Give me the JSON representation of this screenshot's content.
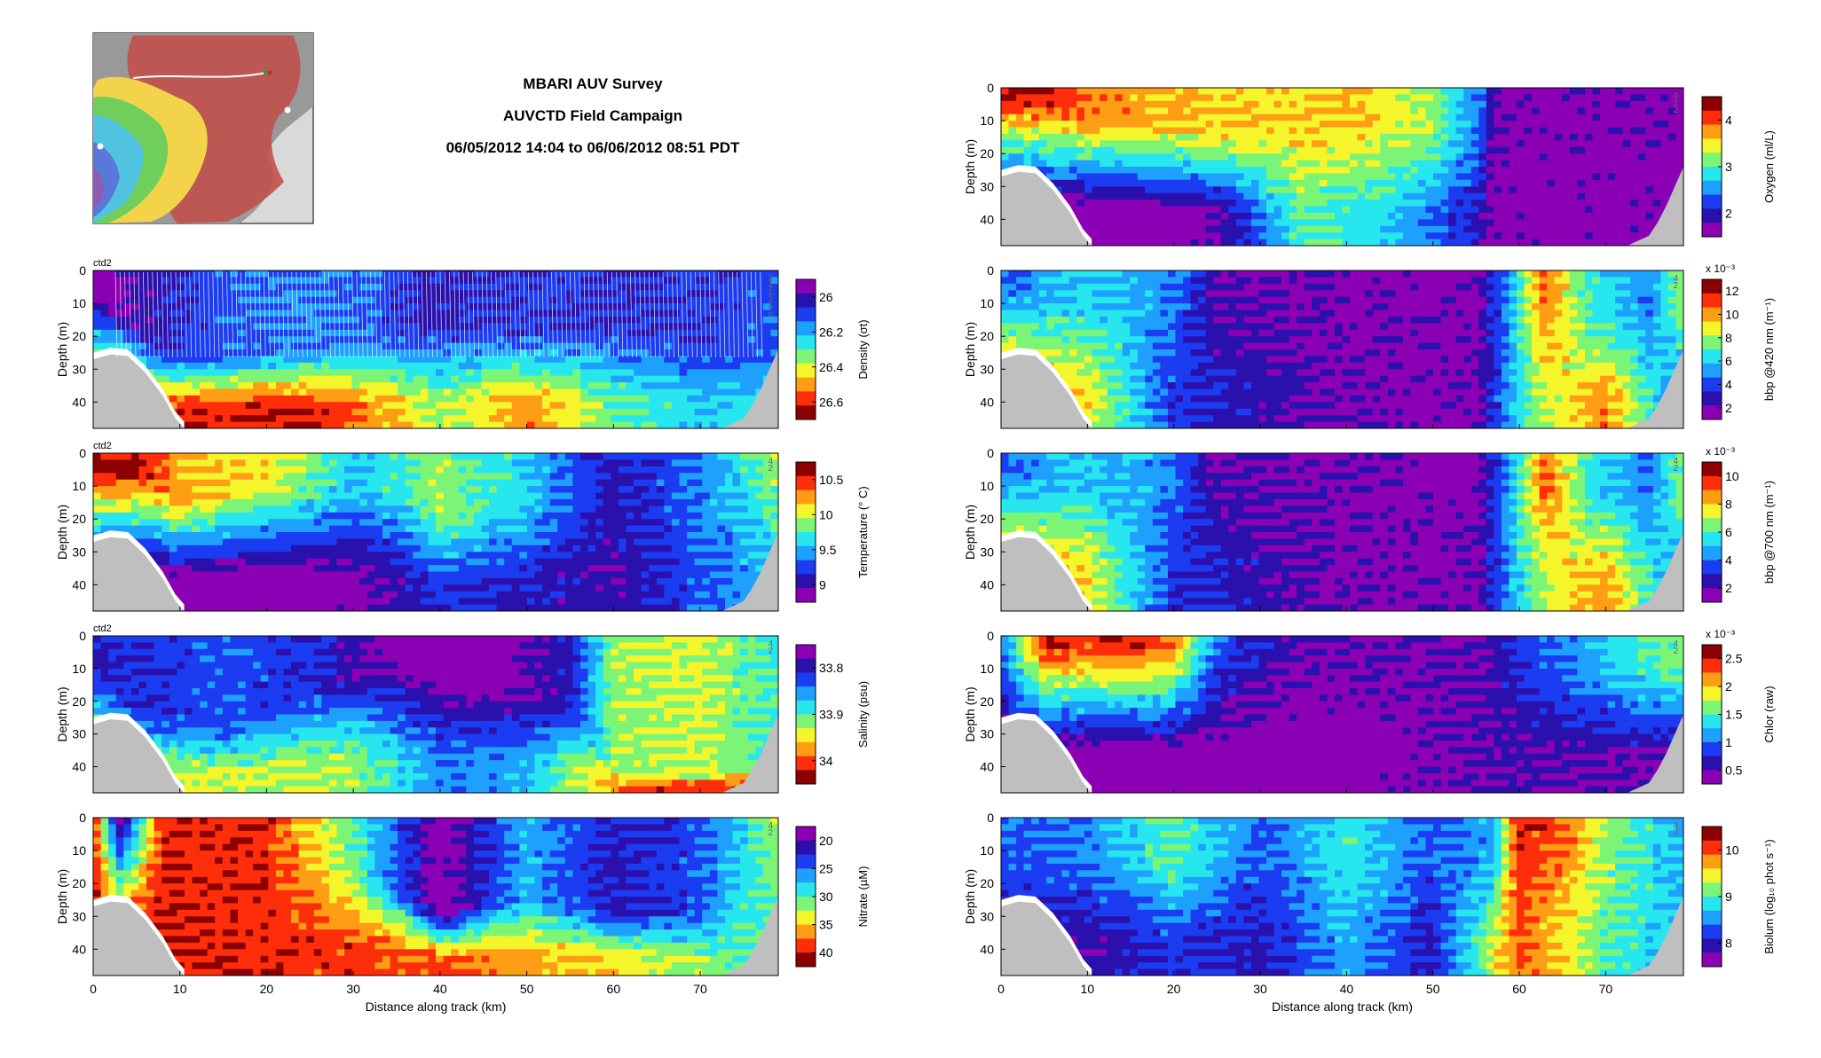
{
  "header": {
    "lines": [
      "MBARI AUV Survey",
      "AUVCTD Field Campaign",
      "06/05/2012 14:04 to 06/06/2012 08:51 PDT"
    ]
  },
  "map": {
    "description_icon": "survey-track-map"
  },
  "colors": {
    "ground": "#bfbfbf",
    "jet": [
      "#8b00b4",
      "#2a10ad",
      "#1b3cf0",
      "#1ea0ff",
      "#27e6ee",
      "#7cf577",
      "#f5f52b",
      "#ff9e14",
      "#ff2e0a",
      "#8c0000"
    ]
  },
  "chart_data": {
    "type": "heatmap",
    "xlabel": "Distance along track (km)",
    "ylabel": "Depth (m)",
    "x_ticks": [
      "0",
      "10",
      "20",
      "30",
      "40",
      "50",
      "60",
      "70"
    ],
    "y_ticks": [
      "0",
      "10",
      "20",
      "30",
      "40"
    ],
    "xlim": [
      0,
      79
    ],
    "ylim": [
      48,
      0
    ],
    "bottom_profile": [
      [
        0,
        27
      ],
      [
        2,
        25.5
      ],
      [
        4,
        26
      ],
      [
        6,
        31
      ],
      [
        8,
        38
      ],
      [
        9.5,
        45
      ],
      [
        10.5,
        48
      ],
      [
        72.5,
        48
      ],
      [
        75,
        45
      ],
      [
        76,
        41
      ],
      [
        77,
        36
      ],
      [
        78,
        30
      ],
      [
        79,
        24
      ]
    ],
    "panels": [
      {
        "id": "density",
        "column": "left",
        "colorbar_label": "Density (σt)",
        "cb_ticks": [
          "26",
          "26.2",
          "26.4",
          "26.6"
        ],
        "cb_reversed": true,
        "cb_exponent": "",
        "tag": "ctd2",
        "annotations": [
          "3",
          "4",
          "1",
          "2",
          "o",
          "o"
        ],
        "profile": [
          [
            0,
            0.05,
            0.1
          ],
          [
            8,
            0.2,
            0.5
          ],
          [
            15,
            0.3,
            0.55
          ],
          [
            25,
            0.35,
            0.5
          ],
          [
            32,
            0.3,
            0.45
          ],
          [
            40,
            0.2,
            0.35
          ],
          [
            50,
            0.25,
            0.4
          ],
          [
            60,
            0.22,
            0.35
          ],
          [
            70,
            0.25,
            0.45
          ],
          [
            79,
            0.3,
            0.5
          ]
        ],
        "deep": [
          [
            0,
            0.8
          ],
          [
            10,
            0.9
          ],
          [
            20,
            0.95
          ],
          [
            30,
            0.85
          ],
          [
            40,
            0.6
          ],
          [
            50,
            0.8
          ],
          [
            60,
            0.55
          ],
          [
            70,
            0.45
          ],
          [
            79,
            0.5
          ]
        ]
      },
      {
        "id": "temperature",
        "column": "left",
        "colorbar_label": "Temperature (° C)",
        "cb_ticks": [
          "10.5",
          "10",
          "9.5",
          "9"
        ],
        "cb_reversed": false,
        "cb_exponent": "",
        "tag": "ctd2",
        "annotations": [
          "4",
          "2"
        ],
        "profile": [
          [
            0,
            0.95,
            0.1
          ],
          [
            5,
            0.97,
            0.1
          ],
          [
            10,
            0.75,
            0.3
          ],
          [
            20,
            0.7,
            0.2
          ],
          [
            30,
            0.45,
            0.2
          ],
          [
            35,
            0.5,
            0.25
          ],
          [
            40,
            0.6,
            0.4
          ],
          [
            50,
            0.45,
            0.35
          ],
          [
            60,
            0.2,
            0.1
          ],
          [
            70,
            0.35,
            0.25
          ],
          [
            79,
            0.6,
            0.2
          ]
        ],
        "deep": [
          [
            0,
            0.05
          ],
          [
            20,
            0.05
          ],
          [
            30,
            0.08
          ],
          [
            40,
            0.25
          ],
          [
            50,
            0.2
          ],
          [
            60,
            0.15
          ],
          [
            70,
            0.3
          ],
          [
            79,
            0.4
          ]
        ]
      },
      {
        "id": "salinity",
        "column": "left",
        "colorbar_label": "Salinity (psu)",
        "cb_ticks": [
          "33.8",
          "33.9",
          "34"
        ],
        "cb_reversed": true,
        "cb_exponent": "",
        "tag": "ctd2",
        "annotations": [
          "4",
          "2"
        ],
        "profile": [
          [
            0,
            0.2,
            0.15
          ],
          [
            5,
            0.25,
            0.5
          ],
          [
            15,
            0.3,
            0.6
          ],
          [
            25,
            0.25,
            0.35
          ],
          [
            35,
            0.05,
            0.15
          ],
          [
            45,
            0.05,
            0.3
          ],
          [
            55,
            0.2,
            0.45
          ],
          [
            60,
            0.6,
            0.85
          ],
          [
            70,
            0.65,
            0.9
          ],
          [
            79,
            0.5,
            0.8
          ]
        ],
        "deep": [
          [
            0,
            0.7
          ],
          [
            30,
            0.6
          ],
          [
            40,
            0.35
          ],
          [
            50,
            0.4
          ],
          [
            60,
            0.8
          ],
          [
            70,
            0.95
          ],
          [
            79,
            0.9
          ]
        ]
      },
      {
        "id": "nitrate",
        "column": "left",
        "colorbar_label": "Nitrate (µM)",
        "cb_ticks": [
          "20",
          "25",
          "30",
          "35",
          "40"
        ],
        "cb_reversed": true,
        "cb_exponent": "",
        "tag": "",
        "annotations": [
          "4",
          "2"
        ],
        "profile": [
          [
            0,
            0.95,
            0.05
          ],
          [
            3,
            0.1,
            0.05
          ],
          [
            8,
            0.9,
            0.05
          ],
          [
            20,
            0.9,
            0.1
          ],
          [
            30,
            0.55,
            0.3
          ],
          [
            40,
            0.05,
            0.6
          ],
          [
            50,
            0.4,
            0.5
          ],
          [
            60,
            0.2,
            0.6
          ],
          [
            70,
            0.3,
            0.6
          ],
          [
            79,
            0.6,
            0.3
          ]
        ],
        "deep": [
          [
            0,
            0.95
          ],
          [
            20,
            0.9
          ],
          [
            40,
            0.85
          ],
          [
            60,
            0.7
          ],
          [
            79,
            0.5
          ]
        ]
      },
      {
        "id": "oxygen",
        "column": "right",
        "colorbar_label": "Oxygen (ml/L)",
        "cb_ticks": [
          "4",
          "3",
          "2"
        ],
        "cb_reversed": false,
        "cb_exponent": "",
        "tag": "",
        "annotations": [
          "4",
          "1",
          "2"
        ],
        "profile": [
          [
            0,
            0.95,
            0.05
          ],
          [
            5,
            0.97,
            0.05
          ],
          [
            10,
            0.8,
            0.2
          ],
          [
            20,
            0.75,
            0.25
          ],
          [
            30,
            0.7,
            0.3
          ],
          [
            40,
            0.75,
            0.2
          ],
          [
            50,
            0.6,
            0.3
          ],
          [
            56,
            0.3,
            0.2
          ],
          [
            57,
            0.1,
            0.02
          ],
          [
            79,
            0.08,
            0.02
          ]
        ],
        "deep": [
          [
            0,
            0.05
          ],
          [
            15,
            0.05
          ],
          [
            25,
            0.1
          ],
          [
            35,
            0.55
          ],
          [
            45,
            0.45
          ],
          [
            55,
            0.2
          ],
          [
            57,
            0.08
          ],
          [
            79,
            0.08
          ]
        ]
      },
      {
        "id": "bbp420",
        "column": "right",
        "colorbar_label": "bbp @420 nm (m⁻¹)",
        "cb_ticks": [
          "12",
          "10",
          "8",
          "6",
          "4",
          "2"
        ],
        "cb_reversed": false,
        "cb_exponent": "x 10⁻³",
        "tag": "",
        "annotations": [
          "4",
          "2"
        ],
        "profile": [
          [
            0,
            0.3,
            0.1
          ],
          [
            5,
            0.4,
            0.2
          ],
          [
            10,
            0.45,
            0.2
          ],
          [
            20,
            0.35,
            0.15
          ],
          [
            25,
            0.12,
            0.05
          ],
          [
            55,
            0.08,
            0.03
          ],
          [
            58,
            0.3,
            0.2
          ],
          [
            63,
            0.85,
            0.2
          ],
          [
            68,
            0.5,
            0.3
          ],
          [
            75,
            0.35,
            0.3
          ],
          [
            79,
            0.6,
            0.3
          ]
        ],
        "deep": [
          [
            0,
            0.9
          ],
          [
            10,
            0.7
          ],
          [
            20,
            0.25
          ],
          [
            40,
            0.1
          ],
          [
            55,
            0.1
          ],
          [
            62,
            0.6
          ],
          [
            70,
            0.8
          ],
          [
            79,
            0.3
          ]
        ]
      },
      {
        "id": "bbp700",
        "column": "right",
        "colorbar_label": "bbp @700 nm (m⁻¹)",
        "cb_ticks": [
          "10",
          "8",
          "6",
          "4",
          "2"
        ],
        "cb_reversed": false,
        "cb_exponent": "x 10⁻³",
        "tag": "",
        "annotations": [
          "4",
          "2"
        ],
        "profile": [
          [
            0,
            0.3,
            0.1
          ],
          [
            5,
            0.4,
            0.2
          ],
          [
            10,
            0.45,
            0.2
          ],
          [
            20,
            0.35,
            0.15
          ],
          [
            25,
            0.12,
            0.05
          ],
          [
            55,
            0.08,
            0.03
          ],
          [
            58,
            0.3,
            0.2
          ],
          [
            63,
            0.85,
            0.2
          ],
          [
            68,
            0.5,
            0.3
          ],
          [
            75,
            0.35,
            0.3
          ],
          [
            79,
            0.6,
            0.3
          ]
        ],
        "deep": [
          [
            0,
            0.9
          ],
          [
            10,
            0.7
          ],
          [
            20,
            0.25
          ],
          [
            40,
            0.1
          ],
          [
            55,
            0.1
          ],
          [
            62,
            0.6
          ],
          [
            70,
            0.8
          ],
          [
            79,
            0.3
          ]
        ]
      },
      {
        "id": "chlor",
        "column": "right",
        "colorbar_label": "Chlor (raw)",
        "cb_ticks": [
          "2.5",
          "2",
          "1.5",
          "1",
          "0.5"
        ],
        "cb_reversed": false,
        "cb_exponent": "x 10⁻³",
        "tag": "",
        "annotations": [
          "4",
          "2"
        ],
        "profile": [
          [
            0,
            0.3,
            0.1
          ],
          [
            5,
            0.95,
            0.05
          ],
          [
            10,
            0.85,
            0.1
          ],
          [
            15,
            0.95,
            0.05
          ],
          [
            20,
            0.8,
            0.1
          ],
          [
            25,
            0.3,
            0.1
          ],
          [
            35,
            0.12,
            0.05
          ],
          [
            55,
            0.12,
            0.05
          ],
          [
            60,
            0.25,
            0.1
          ],
          [
            68,
            0.4,
            0.2
          ],
          [
            79,
            0.6,
            0.2
          ]
        ],
        "deep": [
          [
            0,
            0.05
          ],
          [
            20,
            0.05
          ],
          [
            40,
            0.05
          ],
          [
            60,
            0.15
          ],
          [
            79,
            0.1
          ]
        ]
      },
      {
        "id": "biolum",
        "column": "right",
        "colorbar_label": "Biolum (log₁₀ phot s⁻¹)",
        "cb_ticks": [
          "10",
          "9",
          "8"
        ],
        "cb_reversed": false,
        "cb_exponent": "",
        "tag": "",
        "annotations": [
          "4",
          "2"
        ],
        "profile": [
          [
            0,
            0.3,
            0.2
          ],
          [
            10,
            0.35,
            0.25
          ],
          [
            20,
            0.55,
            0.3
          ],
          [
            30,
            0.3,
            0.2
          ],
          [
            40,
            0.5,
            0.3
          ],
          [
            50,
            0.3,
            0.25
          ],
          [
            57,
            0.4,
            0.3
          ],
          [
            60,
            0.9,
            0.1
          ],
          [
            65,
            0.85,
            0.1
          ],
          [
            70,
            0.6,
            0.3
          ],
          [
            79,
            0.4,
            0.3
          ]
        ],
        "deep": [
          [
            0,
            0.2
          ],
          [
            10,
            0.15
          ],
          [
            20,
            0.25
          ],
          [
            30,
            0.2
          ],
          [
            40,
            0.4
          ],
          [
            50,
            0.2
          ],
          [
            60,
            0.85
          ],
          [
            70,
            0.55
          ],
          [
            79,
            0.4
          ]
        ]
      }
    ]
  }
}
